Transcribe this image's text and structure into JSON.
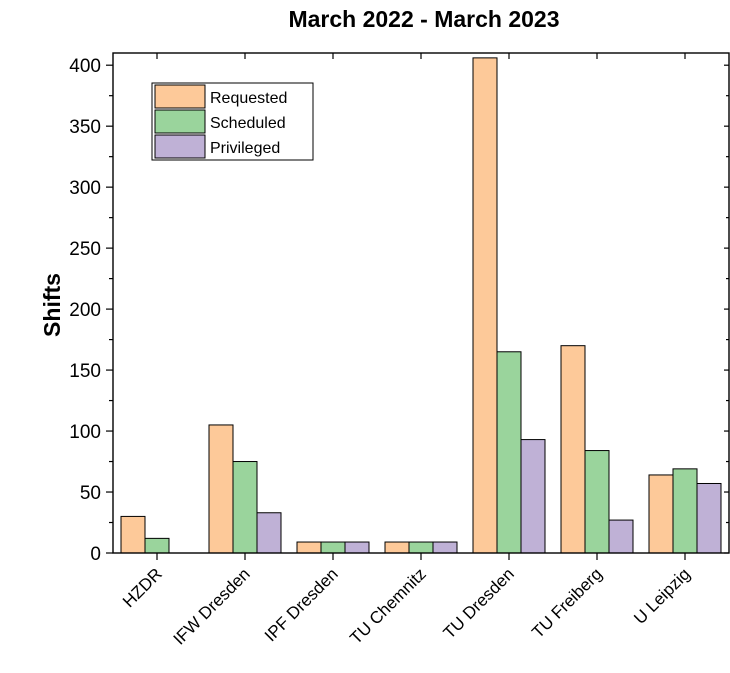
{
  "chart_data": {
    "type": "bar",
    "title": "March 2022 - March 2023",
    "ylabel": "Shifts",
    "xlabel": "",
    "ylim": [
      0,
      410
    ],
    "yticks": [
      0,
      50,
      100,
      150,
      200,
      250,
      300,
      350,
      400
    ],
    "grid": false,
    "legend_position": "top-left",
    "categories": [
      "HZDR",
      "IFW Dresden",
      "IPF Dresden",
      "TU Chemnitz",
      "TU Dresden",
      "TU Freiberg",
      "U Leipzig"
    ],
    "series": [
      {
        "name": "Requested",
        "color": "#FDC999",
        "values": [
          30,
          105,
          9,
          9,
          406,
          170,
          64
        ]
      },
      {
        "name": "Scheduled",
        "color": "#9AD49C",
        "values": [
          12,
          75,
          9,
          9,
          165,
          84,
          69
        ]
      },
      {
        "name": "Privileged",
        "color": "#BFB1D6",
        "values": [
          0,
          33,
          9,
          9,
          93,
          27,
          57
        ]
      }
    ]
  }
}
